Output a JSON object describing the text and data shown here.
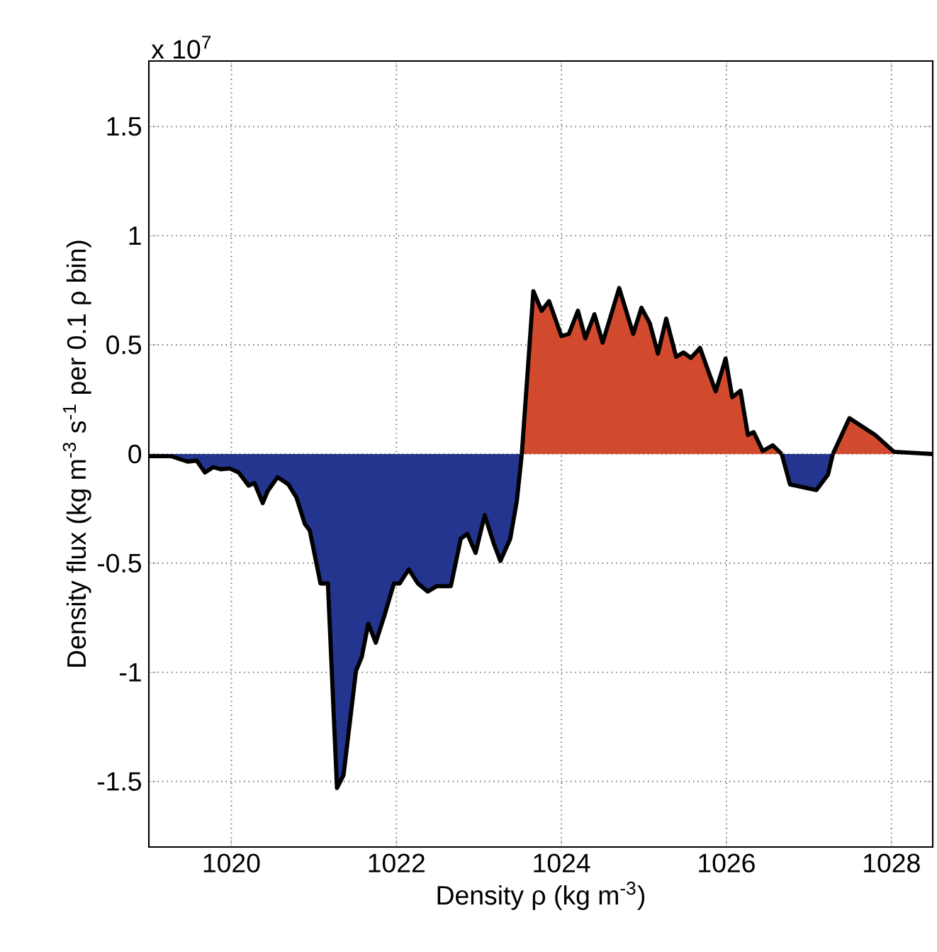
{
  "chart_data": {
    "type": "area",
    "xlabel": "Density ρ (kg m$^{-3}$)",
    "ylabel": "Density flux (kg m$^{-3}$ s$^{-1}$ per 0.1 ρ bin)",
    "annotations": [
      "x 10$^{7}$"
    ],
    "xlim": [
      1019,
      1028.5
    ],
    "ylim": [
      -1.8,
      1.8
    ],
    "xticks": [
      1020,
      1022,
      1024,
      1026,
      1028
    ],
    "yticks": [
      -1.5,
      -1,
      -0.5,
      0,
      0.5,
      1,
      1.5
    ],
    "grid": true,
    "series": [
      {
        "color": "#24358f",
        "x": [
          1019.0,
          1019.27,
          1019.47,
          1019.58,
          1019.68,
          1019.78,
          1019.87,
          1019.98,
          1020.09,
          1020.21,
          1020.28,
          1020.38,
          1020.44,
          1020.56,
          1020.69,
          1020.79,
          1020.89,
          1020.95,
          1021.08,
          1021.17,
          1021.28,
          1021.36,
          1021.51,
          1021.58,
          1021.66,
          1021.75,
          1021.86,
          1021.97,
          1022.04,
          1022.15,
          1022.26,
          1022.38,
          1022.49,
          1022.66,
          1022.78,
          1022.86,
          1022.96,
          1023.07,
          1023.18,
          1023.26,
          1023.38,
          1023.46,
          1023.52,
          1023.6,
          1026.67,
          1026.77,
          1027.09,
          1027.23,
          1027.29
        ],
        "values": [
          -0.01,
          -0.01,
          -0.035,
          -0.03,
          -0.085,
          -0.06,
          -0.07,
          -0.066,
          -0.085,
          -0.145,
          -0.133,
          -0.225,
          -0.17,
          -0.106,
          -0.139,
          -0.2,
          -0.32,
          -0.35,
          -0.593,
          -0.593,
          -1.53,
          -1.47,
          -0.994,
          -0.93,
          -0.777,
          -0.864,
          -0.734,
          -0.593,
          -0.593,
          -0.528,
          -0.593,
          -0.63,
          -0.605,
          -0.605,
          -0.388,
          -0.366,
          -0.453,
          -0.28,
          -0.41,
          -0.49,
          -0.388,
          -0.214,
          0,
          null,
          0,
          -0.139,
          -0.165,
          -0.095,
          0
        ]
      },
      {
        "color": "#d24a2e",
        "x": [
          1023.52,
          1023.66,
          1023.76,
          1023.85,
          1024.0,
          1024.09,
          1024.2,
          1024.29,
          1024.4,
          1024.5,
          1024.7,
          1024.87,
          1024.97,
          1025.07,
          1025.17,
          1025.27,
          1025.39,
          1025.48,
          1025.57,
          1025.68,
          1025.78,
          1025.87,
          1025.99,
          1026.07,
          1026.17,
          1026.26,
          1026.33,
          1026.44,
          1026.56,
          1026.67,
          1026.9,
          1027.29,
          1027.49,
          1027.8,
          1028.03,
          1028.5
        ],
        "values": [
          0,
          0.746,
          0.656,
          0.7,
          0.54,
          0.55,
          0.656,
          0.53,
          0.64,
          0.51,
          0.76,
          0.55,
          0.67,
          0.6,
          0.46,
          0.62,
          0.445,
          0.465,
          0.44,
          0.486,
          0.38,
          0.287,
          0.437,
          0.26,
          0.29,
          0.087,
          0.1,
          0.014,
          0.04,
          0,
          null,
          0,
          0.164,
          0.088,
          0.01,
          0
        ]
      }
    ]
  }
}
